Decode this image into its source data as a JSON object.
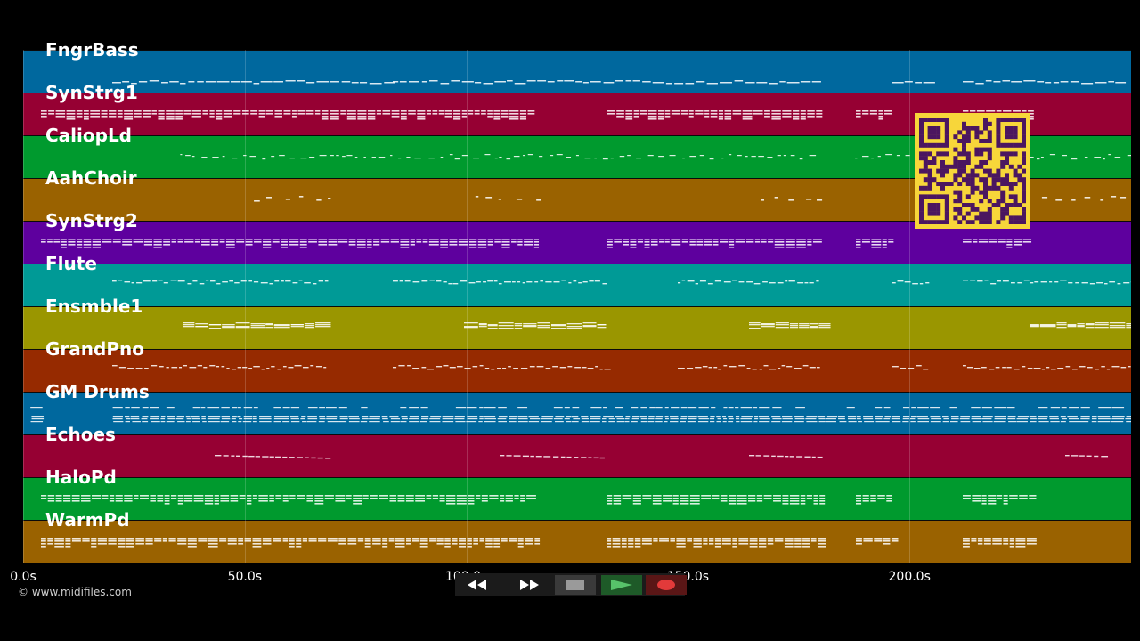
{
  "tracks": [
    {
      "name": "FngrBass",
      "color": "#00689e",
      "style": "dash"
    },
    {
      "name": "SynStrg1",
      "color": "#960033",
      "style": "block"
    },
    {
      "name": "CaliopLd",
      "color": "#009a2e",
      "style": "dots"
    },
    {
      "name": "AahChoir",
      "color": "#9a6200",
      "style": "sparse"
    },
    {
      "name": "SynStrg2",
      "color": "#5e009e",
      "style": "block"
    },
    {
      "name": "Flute",
      "color": "#009a96",
      "style": "wave"
    },
    {
      "name": "Ensmble1",
      "color": "#9a9600",
      "style": "chord"
    },
    {
      "name": "GrandPno",
      "color": "#962a00",
      "style": "wave"
    },
    {
      "name": "GM Drums",
      "color": "#00689e",
      "style": "drums"
    },
    {
      "name": "Echoes",
      "color": "#960033",
      "style": "slope"
    },
    {
      "name": "HaloPd",
      "color": "#009a2e",
      "style": "block"
    },
    {
      "name": "WarmPd",
      "color": "#9a6200",
      "style": "block"
    }
  ],
  "timeline": {
    "ticks": [
      "0.0s",
      "50.0s",
      "100.0s",
      "150.0s",
      "200.0s"
    ],
    "tick_values": [
      0,
      50,
      100,
      150,
      200
    ],
    "range_seconds": [
      0,
      250
    ]
  },
  "copyright": "© www.midifiles.com",
  "transport": {
    "buttons": [
      {
        "name": "rewind-button",
        "icon": "rewind-icon"
      },
      {
        "name": "fast-forward-button",
        "icon": "fast-forward-icon"
      },
      {
        "name": "stop-button",
        "icon": "stop-icon"
      },
      {
        "name": "play-button",
        "icon": "play-icon"
      },
      {
        "name": "record-button",
        "icon": "record-icon"
      }
    ],
    "colors": {
      "rewind": "#1f1f1f",
      "ff": "#1f1f1f",
      "stop": "#3a3a3a",
      "play": "#1e5a28",
      "record": "#6a1818"
    }
  },
  "qr": {
    "background": "#f7d63a",
    "foreground": "#4b1660",
    "icon": "qr-code-icon"
  }
}
